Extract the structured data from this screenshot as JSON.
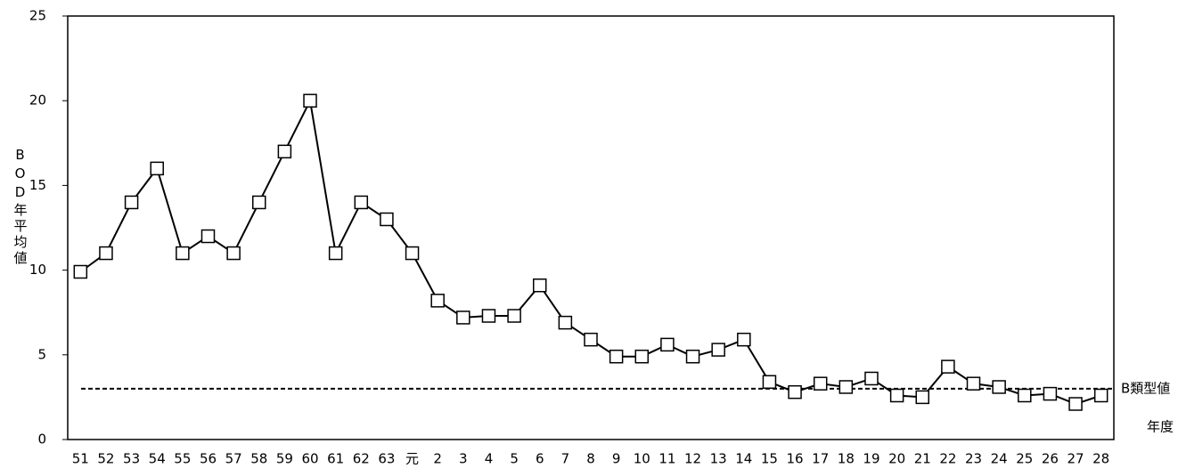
{
  "chart_data": {
    "type": "line",
    "y_axis_label": "BOD年平均値",
    "x_axis_label": "年度",
    "categories": [
      "51",
      "52",
      "53",
      "54",
      "55",
      "56",
      "57",
      "58",
      "59",
      "60",
      "61",
      "62",
      "63",
      "元",
      "2",
      "3",
      "4",
      "5",
      "6",
      "7",
      "8",
      "9",
      "10",
      "11",
      "12",
      "13",
      "14",
      "15",
      "16",
      "17",
      "18",
      "19",
      "20",
      "21",
      "22",
      "23",
      "24",
      "25",
      "26",
      "27",
      "28"
    ],
    "values": [
      9.9,
      11,
      14,
      16,
      11,
      12,
      11,
      14,
      17,
      20,
      11,
      14,
      13,
      11,
      8.2,
      7.2,
      7.3,
      7.3,
      9.1,
      6.9,
      5.9,
      4.9,
      4.9,
      5.6,
      4.9,
      5.3,
      5.9,
      3.4,
      2.8,
      3.3,
      3.1,
      3.6,
      2.6,
      2.5,
      4.3,
      3.3,
      3.1,
      2.6,
      2.7,
      2.1,
      2.6
    ],
    "color": "#000000",
    "marker": "square",
    "reference_line": {
      "value": 3,
      "label": "B類型値"
    },
    "ylim": [
      0,
      25
    ],
    "yticks": [
      0,
      5,
      10,
      15,
      20,
      25
    ],
    "grid": false
  }
}
